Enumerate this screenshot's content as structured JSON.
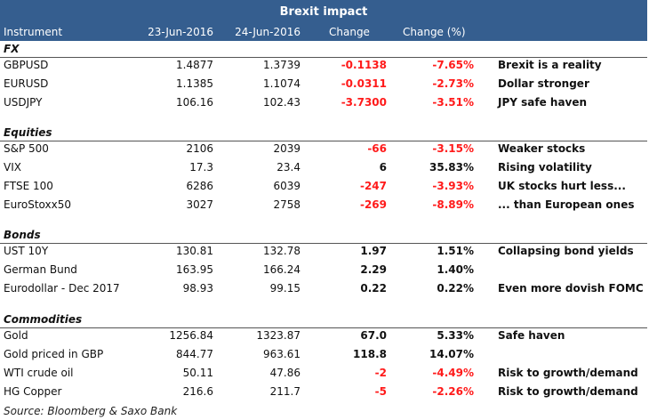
{
  "title": "Brexit impact",
  "columns": [
    "Instrument",
    "23-Jun-2016",
    "24-Jun-2016",
    "Change",
    "Change (%)"
  ],
  "sections": [
    {
      "name": "FX",
      "rows": [
        {
          "instrument": "GBPUSD",
          "d1": "1.4877",
          "d2": "1.3739",
          "change": "-0.1138",
          "pct": "-7.65%",
          "comment": "Brexit is a reality"
        },
        {
          "instrument": "EURUSD",
          "d1": "1.1385",
          "d2": "1.1074",
          "change": "-0.0311",
          "pct": "-2.73%",
          "comment": "Dollar stronger"
        },
        {
          "instrument": "USDJPY",
          "d1": "106.16",
          "d2": "102.43",
          "change": "-3.7300",
          "pct": "-3.51%",
          "comment": "JPY safe haven"
        }
      ]
    },
    {
      "name": "Equities",
      "rows": [
        {
          "instrument": "S&P 500",
          "d1": "2106",
          "d2": "2039",
          "change": "-66",
          "pct": "-3.15%",
          "comment": "Weaker stocks"
        },
        {
          "instrument": "VIX",
          "d1": "17.3",
          "d2": "23.4",
          "change": "6",
          "pct": "35.83%",
          "comment": "Rising volatility"
        },
        {
          "instrument": "FTSE 100",
          "d1": "6286",
          "d2": "6039",
          "change": "-247",
          "pct": "-3.93%",
          "comment": "UK stocks hurt less..."
        },
        {
          "instrument": "EuroStoxx50",
          "d1": "3027",
          "d2": "2758",
          "change": "-269",
          "pct": "-8.89%",
          "comment": "... than European ones"
        }
      ]
    },
    {
      "name": "Bonds",
      "rows": [
        {
          "instrument": "UST 10Y",
          "d1": "130.81",
          "d2": "132.78",
          "change": "1.97",
          "pct": "1.51%",
          "comment": "Collapsing bond yields"
        },
        {
          "instrument": "German Bund",
          "d1": "163.95",
          "d2": "166.24",
          "change": "2.29",
          "pct": "1.40%",
          "comment": ""
        },
        {
          "instrument": "Eurodollar - Dec 2017",
          "d1": "98.93",
          "d2": "99.15",
          "change": "0.22",
          "pct": "0.22%",
          "comment": "Even more dovish FOMC"
        }
      ]
    },
    {
      "name": "Commodities",
      "rows": [
        {
          "instrument": "Gold",
          "d1": "1256.84",
          "d2": "1323.87",
          "change": "67.0",
          "pct": "5.33%",
          "comment": "Safe haven"
        },
        {
          "instrument": "Gold priced in GBP",
          "d1": "844.77",
          "d2": "963.61",
          "change": "118.8",
          "pct": "14.07%",
          "comment": ""
        },
        {
          "instrument": "WTI crude oil",
          "d1": "50.11",
          "d2": "47.86",
          "change": "-2",
          "pct": "-4.49%",
          "comment": "Risk to growth/demand"
        },
        {
          "instrument": "HG Copper",
          "d1": "216.6",
          "d2": "211.7",
          "change": "-5",
          "pct": "-2.26%",
          "comment": "Risk to growth/demand"
        }
      ]
    }
  ],
  "source": "Source: Bloomberg & Saxo Bank",
  "colors": {
    "header": "#355e8f",
    "negative": "#ff1a1a"
  }
}
